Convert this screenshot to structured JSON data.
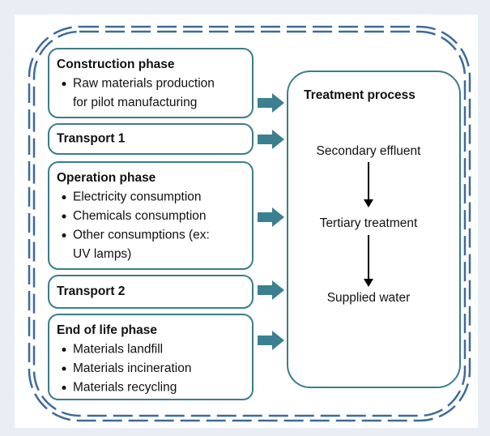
{
  "left_boxes": [
    {
      "title": "Construction phase",
      "items": [
        [
          "Raw materials production",
          "for pilot manufacturing"
        ]
      ]
    },
    {
      "title": "Transport 1",
      "items": []
    },
    {
      "title": "Operation phase",
      "items": [
        [
          "Electricity consumption"
        ],
        [
          "Chemicals consumption"
        ],
        [
          "Other consumptions (ex:",
          "UV lamps)"
        ]
      ]
    },
    {
      "title": "Transport 2",
      "items": []
    },
    {
      "title": "End of life phase",
      "items": [
        [
          "Materials landfill"
        ],
        [
          "Materials incineration"
        ],
        [
          "Materials recycling"
        ]
      ]
    }
  ],
  "treatment": {
    "title": "Treatment process",
    "steps": [
      "Secondary effluent",
      "Tertiary treatment",
      "Supplied water"
    ]
  }
}
